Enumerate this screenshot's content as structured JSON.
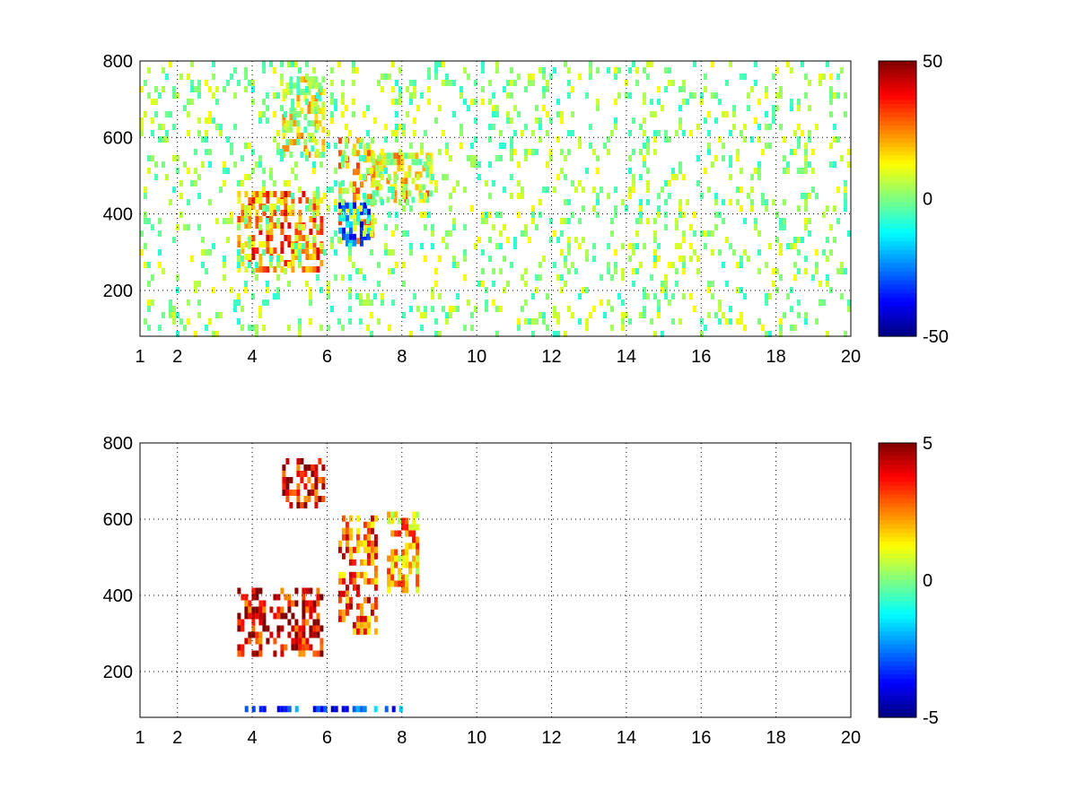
{
  "figure": {
    "background": "#ffffff"
  },
  "chart_data": [
    {
      "type": "heatmap",
      "title": "",
      "xlabel": "",
      "ylabel": "",
      "xlim": [
        1,
        20
      ],
      "ylim": [
        80,
        800
      ],
      "x_ticks": [
        1,
        2,
        4,
        6,
        8,
        10,
        12,
        14,
        16,
        18,
        20
      ],
      "x_tick_labels": [
        "1",
        "2",
        "4",
        "6",
        "8",
        "10",
        "12",
        "14",
        "16",
        "18",
        "20"
      ],
      "y_ticks": [
        200,
        400,
        600,
        800
      ],
      "y_tick_labels": [
        "200",
        "400",
        "600",
        "800"
      ],
      "grid": true,
      "grid_style": "dotted",
      "colormap": "jet",
      "clim": [
        -50,
        50
      ],
      "colorbar_ticks": [
        -50,
        0,
        50
      ],
      "colorbar_tick_labels": [
        "-50",
        "0",
        "50"
      ],
      "features": [
        {
          "x_range": [
            3.6,
            5.9
          ],
          "y_range": [
            250,
            460
          ],
          "value": 25
        },
        {
          "x_range": [
            6.3,
            7.2
          ],
          "y_range": [
            330,
            600
          ],
          "value": 15
        },
        {
          "x_range": [
            6.3,
            7.1
          ],
          "y_range": [
            330,
            430
          ],
          "value": -25
        },
        {
          "x_range": [
            4.8,
            5.9
          ],
          "y_range": [
            560,
            760
          ],
          "value": 8
        },
        {
          "x_range": [
            7.2,
            8.8
          ],
          "y_range": [
            430,
            560
          ],
          "value": 12
        },
        {
          "x_range": [
            1,
            20
          ],
          "y_range": [
            80,
            800
          ],
          "value": 2
        }
      ]
    },
    {
      "type": "heatmap",
      "title": "",
      "xlabel": "",
      "ylabel": "",
      "xlim": [
        1,
        20
      ],
      "ylim": [
        80,
        800
      ],
      "x_ticks": [
        1,
        2,
        4,
        6,
        8,
        10,
        12,
        14,
        16,
        18,
        20
      ],
      "x_tick_labels": [
        "1",
        "2",
        "4",
        "6",
        "8",
        "10",
        "12",
        "14",
        "16",
        "18",
        "20"
      ],
      "y_ticks": [
        200,
        400,
        600,
        800
      ],
      "y_tick_labels": [
        "200",
        "400",
        "600",
        "800"
      ],
      "grid": true,
      "grid_style": "dotted",
      "colormap": "jet",
      "clim": [
        -5,
        5
      ],
      "colorbar_ticks": [
        -5,
        0,
        5
      ],
      "colorbar_tick_labels": [
        "-5",
        "0",
        "5"
      ],
      "features": [
        {
          "x_range": [
            3.6,
            5.9
          ],
          "y_range": [
            240,
            420
          ],
          "value": 4
        },
        {
          "x_range": [
            6.3,
            7.3
          ],
          "y_range": [
            300,
            610
          ],
          "value": 3
        },
        {
          "x_range": [
            7.6,
            8.4
          ],
          "y_range": [
            420,
            620
          ],
          "value": 2
        },
        {
          "x_range": [
            4.8,
            5.9
          ],
          "y_range": [
            640,
            760
          ],
          "value": 4
        },
        {
          "x_range": [
            3.8,
            8.2
          ],
          "y_range": [
            95,
            110
          ],
          "value": -3
        }
      ]
    }
  ]
}
